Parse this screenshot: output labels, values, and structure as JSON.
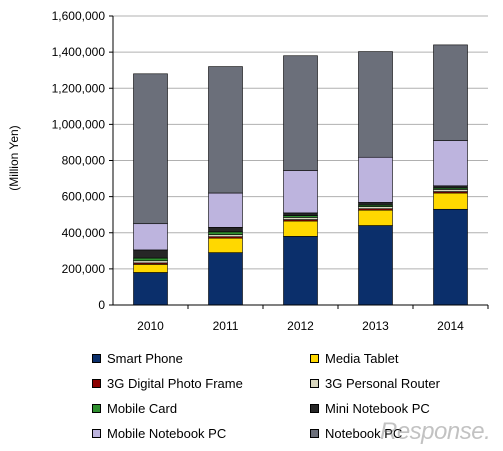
{
  "chart_data": {
    "type": "bar",
    "stacked": true,
    "categories": [
      "2010",
      "2011",
      "2012",
      "2013",
      "2014"
    ],
    "ylabel": "(Million Yen)",
    "ylim": [
      0,
      1600000
    ],
    "y_ticks": [
      "0",
      "200,000",
      "400,000",
      "600,000",
      "800,000",
      "1,000,000",
      "1,200,000",
      "1,400,000",
      "1,600,000"
    ],
    "grid": true,
    "legend_position": "bottom",
    "series": [
      {
        "name": "Smart Phone",
        "color": "#0b2f6b",
        "values": [
          180000,
          290000,
          380000,
          440000,
          530000
        ]
      },
      {
        "name": "Media Tablet",
        "color": "#ffd800",
        "values": [
          45000,
          80000,
          85000,
          85000,
          90000
        ]
      },
      {
        "name": "3G Digital Photo Frame",
        "color": "#8b0000",
        "values": [
          8000,
          8000,
          8000,
          8000,
          8000
        ]
      },
      {
        "name": "3G Personal Router",
        "color": "#d9d7bf",
        "values": [
          12000,
          12000,
          12000,
          12000,
          12000
        ]
      },
      {
        "name": "Mobile Card",
        "color": "#2f8f2f",
        "values": [
          15000,
          15000,
          10000,
          8000,
          8000
        ]
      },
      {
        "name": "Mini Notebook PC",
        "color": "#262626",
        "values": [
          45000,
          25000,
          15000,
          15000,
          12000
        ]
      },
      {
        "name": "Mobile Notebook PC",
        "color": "#bdb4de",
        "values": [
          145000,
          190000,
          235000,
          250000,
          250000
        ]
      },
      {
        "name": "Notebook PC",
        "color": "#6b6f7a",
        "values": [
          830000,
          700000,
          635000,
          585000,
          530000
        ]
      }
    ]
  },
  "watermark": "Response."
}
